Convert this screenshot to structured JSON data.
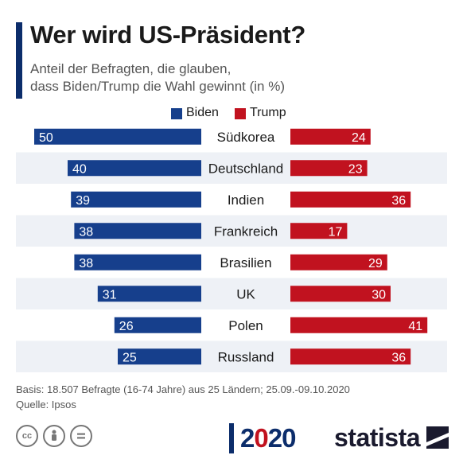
{
  "header": {
    "title": "Wer wird US-Präsident?",
    "subtitle_line1": "Anteil der Befragten, die glauben,",
    "subtitle_line2": "dass Biden/Trump die Wahl gewinnt (in %)"
  },
  "colors": {
    "biden": "#163f8c",
    "trump": "#c1121f",
    "stripe": "#eef1f6"
  },
  "chart_data": {
    "type": "bar",
    "title": "Wer wird US-Präsident?",
    "subtitle": "Anteil der Befragten, die glauben, dass Biden/Trump die Wahl gewinnt (in %)",
    "categories": [
      "Südkorea",
      "Deutschland",
      "Indien",
      "Frankreich",
      "Brasilien",
      "UK",
      "Polen",
      "Russland"
    ],
    "series": [
      {
        "name": "Biden",
        "values": [
          50,
          40,
          39,
          38,
          38,
          31,
          26,
          25
        ]
      },
      {
        "name": "Trump",
        "values": [
          24,
          23,
          36,
          17,
          29,
          30,
          41,
          36
        ]
      }
    ],
    "legend": "top-center",
    "grid": false
  },
  "footer": {
    "basis": "Basis: 18.507 Befragte (16-74 Jahre) aus 25 Ländern; 25.09.-09.10.2020",
    "source": "Quelle: Ipsos"
  },
  "branding": {
    "year_prefix": "2",
    "year_middle": "0",
    "year_suffix": "20",
    "name": "statista",
    "cc_icons": [
      "cc",
      "by",
      "nd"
    ]
  }
}
